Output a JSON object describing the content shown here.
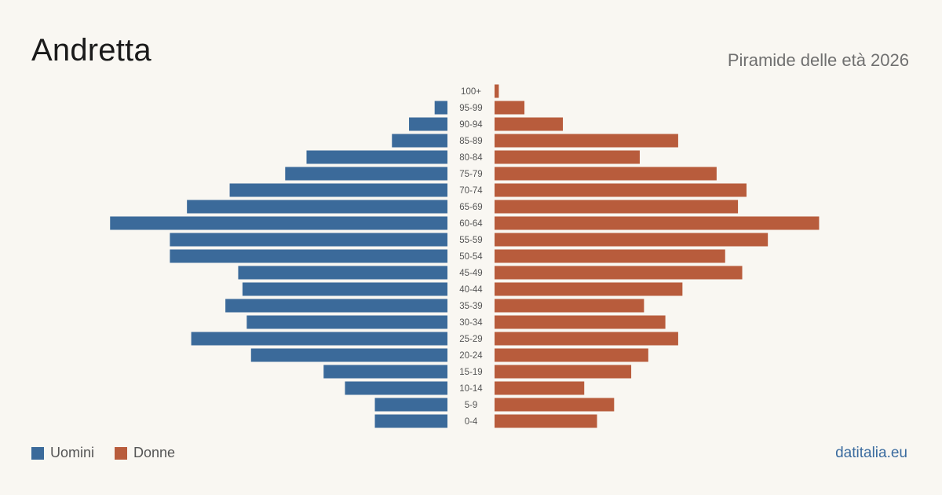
{
  "header": {
    "title": "Andretta",
    "subtitle": "Piramide delle età 2026"
  },
  "legend": {
    "men_label": "Uomini",
    "women_label": "Donne"
  },
  "footer": {
    "source": "datitalia.eu"
  },
  "colors": {
    "men": "#3b6a9a",
    "women": "#b85c3c",
    "background": "#f9f7f2"
  },
  "chart_data": {
    "type": "bar",
    "orientation": "horizontal-pyramid",
    "categories": [
      "100+",
      "95-99",
      "90-94",
      "85-89",
      "80-84",
      "75-79",
      "70-74",
      "65-69",
      "60-64",
      "55-59",
      "50-54",
      "45-49",
      "40-44",
      "35-39",
      "30-34",
      "25-29",
      "20-24",
      "15-19",
      "10-14",
      "5-9",
      "0-4"
    ],
    "series": [
      {
        "name": "Uomini",
        "values": [
          0,
          3,
          9,
          13,
          33,
          38,
          51,
          61,
          79,
          65,
          65,
          49,
          48,
          52,
          47,
          60,
          46,
          29,
          24,
          17,
          17
        ]
      },
      {
        "name": "Donne",
        "values": [
          1,
          7,
          16,
          43,
          34,
          52,
          59,
          57,
          76,
          64,
          54,
          58,
          44,
          35,
          40,
          43,
          36,
          32,
          21,
          28,
          24
        ]
      }
    ],
    "xlim": [
      0,
      80
    ],
    "grid": false,
    "legend_position": "bottom-left"
  }
}
